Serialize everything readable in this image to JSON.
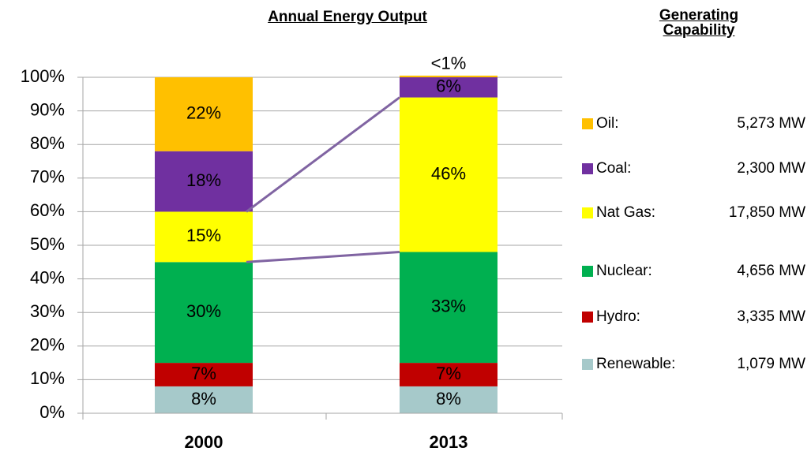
{
  "chart_data": {
    "type": "stacked_bar",
    "title": "Annual Energy Output",
    "legend_title": "Generating Capability",
    "categories": [
      "2000",
      "2013"
    ],
    "ylim": [
      0,
      100
    ],
    "yticks": [
      {
        "value": 0,
        "label": "0%"
      },
      {
        "value": 10,
        "label": "10%"
      },
      {
        "value": 20,
        "label": "20%"
      },
      {
        "value": 30,
        "label": "30%"
      },
      {
        "value": 40,
        "label": "40%"
      },
      {
        "value": 50,
        "label": "50%"
      },
      {
        "value": 60,
        "label": "60%"
      },
      {
        "value": 70,
        "label": "70%"
      },
      {
        "value": 80,
        "label": "80%"
      },
      {
        "value": 90,
        "label": "90%"
      },
      {
        "value": 100,
        "label": "100%"
      }
    ],
    "grid": true,
    "legend": "right",
    "series": [
      {
        "name": "Renewable:",
        "capability": "1,079 MW",
        "color": "#a6c9ca",
        "values": [
          8,
          8
        ],
        "value_labels": [
          "8%",
          "8%"
        ]
      },
      {
        "name": "Hydro:",
        "capability": "3,335 MW",
        "color": "#c00000",
        "values": [
          7,
          7
        ],
        "value_labels": [
          "7%",
          "7%"
        ]
      },
      {
        "name": "Nuclear:",
        "capability": "4,656 MW",
        "color": "#00b050",
        "values": [
          30,
          33
        ],
        "value_labels": [
          "30%",
          "33%"
        ]
      },
      {
        "name": "Nat Gas:",
        "capability": "17,850 MW",
        "color": "#ffff00",
        "values": [
          15,
          46
        ],
        "value_labels": [
          "15%",
          "46%"
        ]
      },
      {
        "name": "Coal:",
        "capability": "2,300 MW",
        "color": "#7030a0",
        "values": [
          18,
          6
        ],
        "value_labels": [
          "18%",
          "6%"
        ]
      },
      {
        "name": "Oil:",
        "capability": "5,273 MW",
        "color": "#ffc000",
        "values": [
          22,
          0.5
        ],
        "value_labels": [
          "22%",
          "<1%"
        ]
      }
    ]
  }
}
